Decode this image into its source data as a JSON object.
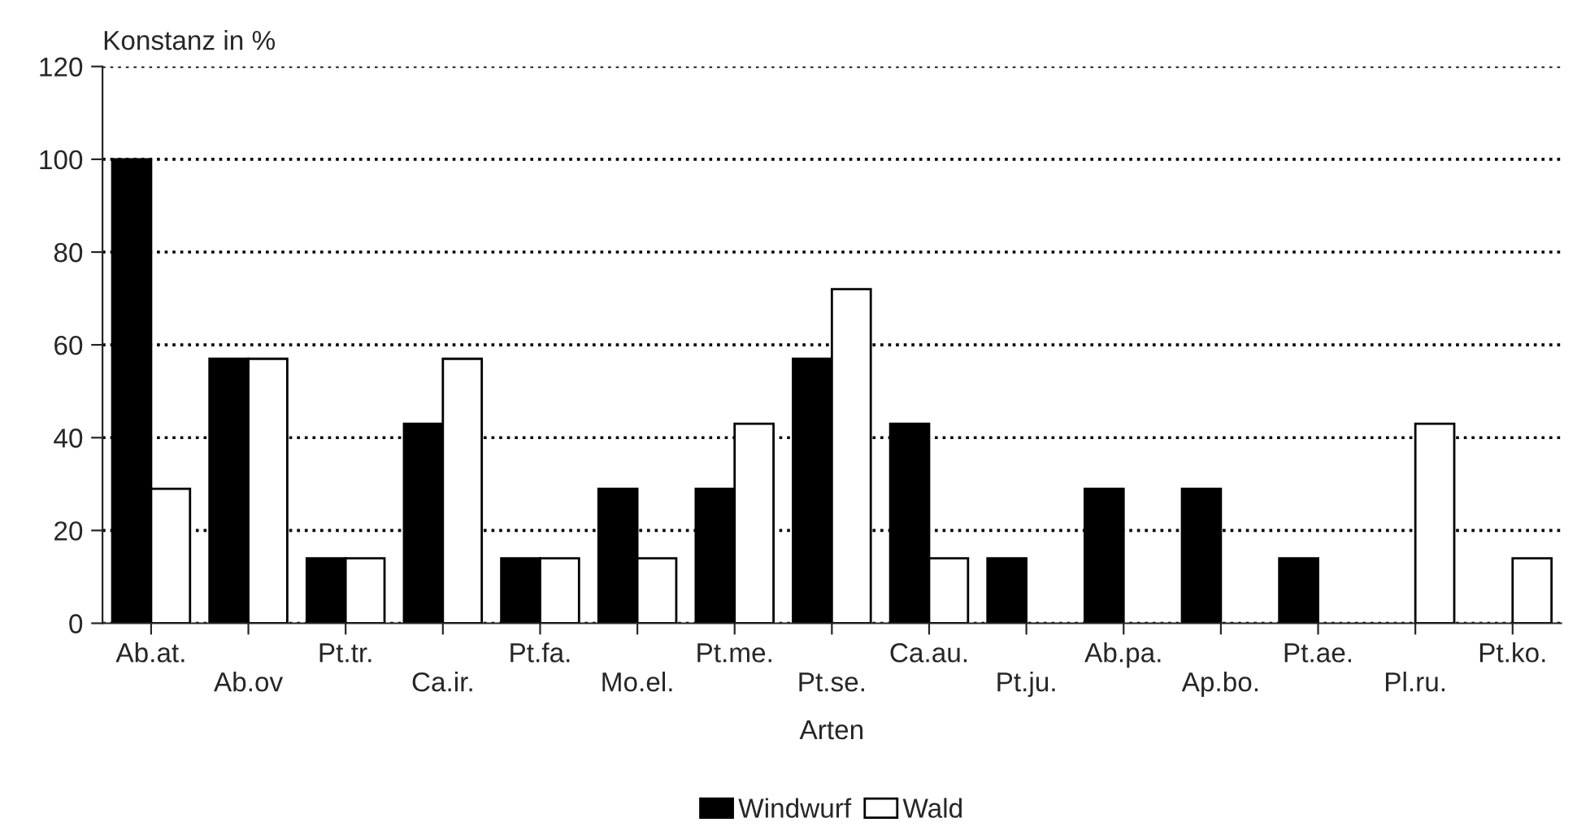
{
  "chart_data": {
    "type": "bar",
    "ylabel": "Konstanz in %",
    "xlabel": "Arten",
    "categories": [
      "Ab.at.",
      "Ab.ov",
      "Pt.tr.",
      "Ca.ir.",
      "Pt.fa.",
      "Mo.el.",
      "Pt.me.",
      "Pt.se.",
      "Ca.au.",
      "Pt.ju.",
      "Ab.pa.",
      "Ap.bo.",
      "Pt.ae.",
      "Pl.ru.",
      "Pt.ko."
    ],
    "series": [
      {
        "name": "Windwurf",
        "color": "#000000",
        "values": [
          100,
          57,
          14,
          43,
          14,
          29,
          29,
          57,
          43,
          14,
          29,
          29,
          14,
          0,
          0
        ]
      },
      {
        "name": "Wald",
        "color": "#ffffff",
        "values": [
          29,
          57,
          14,
          57,
          14,
          14,
          43,
          72,
          14,
          0,
          0,
          0,
          0,
          43,
          14
        ]
      }
    ],
    "ylim": [
      0,
      120
    ],
    "yticks": [
      0,
      20,
      40,
      60,
      80,
      100,
      120
    ],
    "grid": "y",
    "legend": "bottom"
  }
}
